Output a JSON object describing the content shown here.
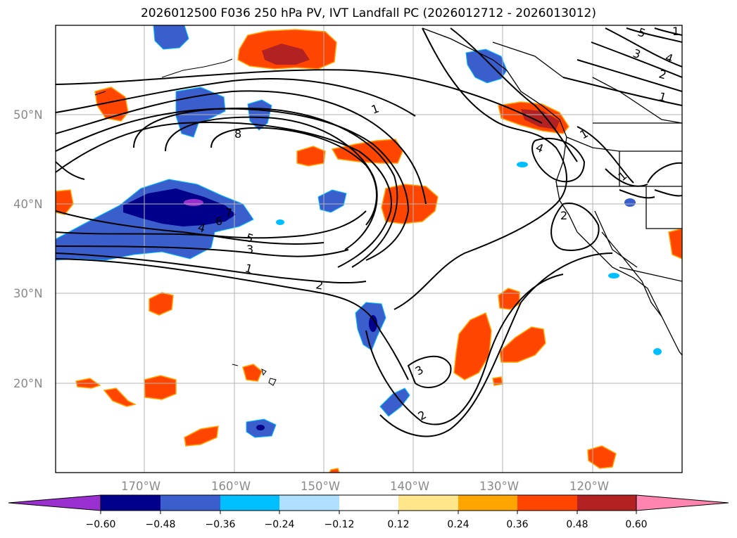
{
  "title": "2026012500 F036 250 hPa PV, IVT Landfall PC (2026012712 - 2026013012)",
  "lat_labels": [
    "50°N",
    "40°N",
    "30°N",
    "20°N"
  ],
  "lon_labels": [
    "170°W",
    "160°W",
    "150°W",
    "140°W",
    "130°W",
    "120°W"
  ],
  "colorbar": {
    "tick_labels": [
      "−0.60",
      "−0.48",
      "−0.36",
      "−0.24",
      "−0.12",
      "0.12",
      "0.24",
      "0.36",
      "0.48",
      "0.60"
    ],
    "colors": [
      "#9b30d0",
      "#00008b",
      "#3a5fcd",
      "#00bfff",
      "#b0e0ff",
      "#ffffff",
      "#ffe68a",
      "#ffa500",
      "#ff4500",
      "#b22222",
      "#ff85b0"
    ]
  },
  "contour_labels": [
    "1",
    "8",
    "6",
    "7",
    "5",
    "4",
    "3",
    "1",
    "2",
    "1",
    "3",
    "4",
    "2",
    "1",
    "5",
    "1",
    "1",
    "4",
    "2",
    "3",
    "2"
  ],
  "colors": {
    "positive": "#ff4500",
    "negative": "#3a5fcd"
  }
}
